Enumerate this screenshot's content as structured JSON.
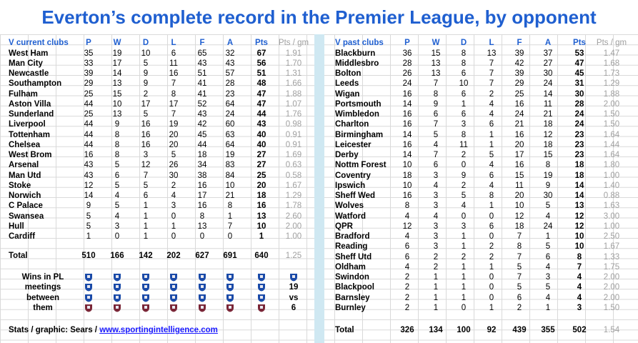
{
  "title": "Everton’s complete record in the Premier League, by opponent",
  "left_table": {
    "header": [
      "V current clubs",
      "P",
      "W",
      "D",
      "L",
      "F",
      "A",
      "Pts",
      "Pts / gm"
    ],
    "rows": [
      [
        "West Ham",
        "35",
        "19",
        "10",
        "6",
        "65",
        "32",
        "67",
        "1.91"
      ],
      [
        "Man City",
        "33",
        "17",
        "5",
        "11",
        "43",
        "43",
        "56",
        "1.70"
      ],
      [
        "Newcastle",
        "39",
        "14",
        "9",
        "16",
        "51",
        "57",
        "51",
        "1.31"
      ],
      [
        "Southampton",
        "29",
        "13",
        "9",
        "7",
        "41",
        "28",
        "48",
        "1.66"
      ],
      [
        "Fulham",
        "25",
        "15",
        "2",
        "8",
        "41",
        "23",
        "47",
        "1.88"
      ],
      [
        "Aston Villa",
        "44",
        "10",
        "17",
        "17",
        "52",
        "64",
        "47",
        "1.07"
      ],
      [
        "Sunderland",
        "25",
        "13",
        "5",
        "7",
        "43",
        "24",
        "44",
        "1.76"
      ],
      [
        "Liverpool",
        "44",
        "9",
        "16",
        "19",
        "42",
        "60",
        "43",
        "0.98"
      ],
      [
        "Tottenham",
        "44",
        "8",
        "16",
        "20",
        "45",
        "63",
        "40",
        "0.91"
      ],
      [
        "Chelsea",
        "44",
        "8",
        "16",
        "20",
        "44",
        "64",
        "40",
        "0.91"
      ],
      [
        "West Brom",
        "16",
        "8",
        "3",
        "5",
        "18",
        "19",
        "27",
        "1.69"
      ],
      [
        "Arsenal",
        "43",
        "5",
        "12",
        "26",
        "34",
        "83",
        "27",
        "0.63"
      ],
      [
        "Man Utd",
        "43",
        "6",
        "7",
        "30",
        "38",
        "84",
        "25",
        "0.58"
      ],
      [
        "Stoke",
        "12",
        "5",
        "5",
        "2",
        "16",
        "10",
        "20",
        "1.67"
      ],
      [
        "Norwich",
        "14",
        "4",
        "6",
        "4",
        "17",
        "21",
        "18",
        "1.29"
      ],
      [
        "C Palace",
        "9",
        "5",
        "1",
        "3",
        "16",
        "8",
        "16",
        "1.78"
      ],
      [
        "Swansea",
        "5",
        "4",
        "1",
        "0",
        "8",
        "1",
        "13",
        "2.60"
      ],
      [
        "Hull",
        "5",
        "3",
        "1",
        "1",
        "13",
        "7",
        "10",
        "2.00"
      ],
      [
        "Cardiff",
        "1",
        "0",
        "1",
        "0",
        "0",
        "0",
        "1",
        "1.00"
      ]
    ],
    "total": [
      "Total",
      "510",
      "166",
      "142",
      "202",
      "627",
      "691",
      "640",
      "1.25"
    ]
  },
  "wins": {
    "label_lines": [
      "Wins in PL",
      "meetings",
      "between",
      "them"
    ],
    "everton_crest": "everton-crest-icon",
    "westham_crest": "westham-crest-icon",
    "side_values": [
      "19",
      "vs",
      "6"
    ]
  },
  "right_table": {
    "header": [
      "V past clubs",
      "P",
      "W",
      "D",
      "L",
      "F",
      "A",
      "Pts",
      "Pts / gm"
    ],
    "rows": [
      [
        "Blackburn",
        "36",
        "15",
        "8",
        "13",
        "39",
        "37",
        "53",
        "1.47"
      ],
      [
        "Middlesbro",
        "28",
        "13",
        "8",
        "7",
        "42",
        "27",
        "47",
        "1.68"
      ],
      [
        "Bolton",
        "26",
        "13",
        "6",
        "7",
        "39",
        "30",
        "45",
        "1.73"
      ],
      [
        "Leeds",
        "24",
        "7",
        "10",
        "7",
        "29",
        "24",
        "31",
        "1.29"
      ],
      [
        "Wigan",
        "16",
        "8",
        "6",
        "2",
        "25",
        "14",
        "30",
        "1.88"
      ],
      [
        "Portsmouth",
        "14",
        "9",
        "1",
        "4",
        "16",
        "11",
        "28",
        "2.00"
      ],
      [
        "Wimbledon",
        "16",
        "6",
        "6",
        "4",
        "24",
        "21",
        "24",
        "1.50"
      ],
      [
        "Charlton",
        "16",
        "7",
        "3",
        "6",
        "21",
        "18",
        "24",
        "1.50"
      ],
      [
        "Birmingham",
        "14",
        "5",
        "8",
        "1",
        "16",
        "12",
        "23",
        "1.64"
      ],
      [
        "Leicester",
        "16",
        "4",
        "11",
        "1",
        "20",
        "18",
        "23",
        "1.44"
      ],
      [
        "Derby",
        "14",
        "7",
        "2",
        "5",
        "17",
        "15",
        "23",
        "1.64"
      ],
      [
        "Nottm Forest",
        "10",
        "6",
        "0",
        "4",
        "16",
        "8",
        "18",
        "1.80"
      ],
      [
        "Coventry",
        "18",
        "3",
        "9",
        "6",
        "15",
        "19",
        "18",
        "1.00"
      ],
      [
        "Ipswich",
        "10",
        "4",
        "2",
        "4",
        "11",
        "9",
        "14",
        "1.40"
      ],
      [
        "Sheff Wed",
        "16",
        "3",
        "5",
        "8",
        "20",
        "30",
        "14",
        "0.88"
      ],
      [
        "Wolves",
        "8",
        "3",
        "4",
        "1",
        "10",
        "5",
        "13",
        "1.63"
      ],
      [
        "Watford",
        "4",
        "4",
        "0",
        "0",
        "12",
        "4",
        "12",
        "3.00"
      ],
      [
        "QPR",
        "12",
        "3",
        "3",
        "6",
        "18",
        "24",
        "12",
        "1.00"
      ],
      [
        "Bradford",
        "4",
        "3",
        "1",
        "0",
        "7",
        "1",
        "10",
        "2.50"
      ],
      [
        "Reading",
        "6",
        "3",
        "1",
        "2",
        "8",
        "5",
        "10",
        "1.67"
      ],
      [
        "Sheff Utd",
        "6",
        "2",
        "2",
        "2",
        "7",
        "6",
        "8",
        "1.33"
      ],
      [
        "Oldham",
        "4",
        "2",
        "1",
        "1",
        "5",
        "4",
        "7",
        "1.75"
      ],
      [
        "Swindon",
        "2",
        "1",
        "1",
        "0",
        "7",
        "3",
        "4",
        "2.00"
      ],
      [
        "Blackpool",
        "2",
        "1",
        "1",
        "0",
        "5",
        "5",
        "4",
        "2.00"
      ],
      [
        "Barnsley",
        "2",
        "1",
        "1",
        "0",
        "6",
        "4",
        "4",
        "2.00"
      ],
      [
        "Burnley",
        "2",
        "1",
        "0",
        "1",
        "2",
        "1",
        "3",
        "1.50"
      ]
    ],
    "total": [
      "Total",
      "326",
      "134",
      "100",
      "92",
      "439",
      "355",
      "502",
      "1.54"
    ]
  },
  "credit": {
    "text": "Stats / graphic: Sears /",
    "link": "www.sportingintelligence.com"
  },
  "colors": {
    "title": "#1f5fd0",
    "header": "#1f5fd0",
    "ppg": "#a0a0a0",
    "divider": "#cfe8f2",
    "everton_blue": "#1a4aa8",
    "westham_claret": "#7a2637",
    "link": "#1a1aff"
  }
}
